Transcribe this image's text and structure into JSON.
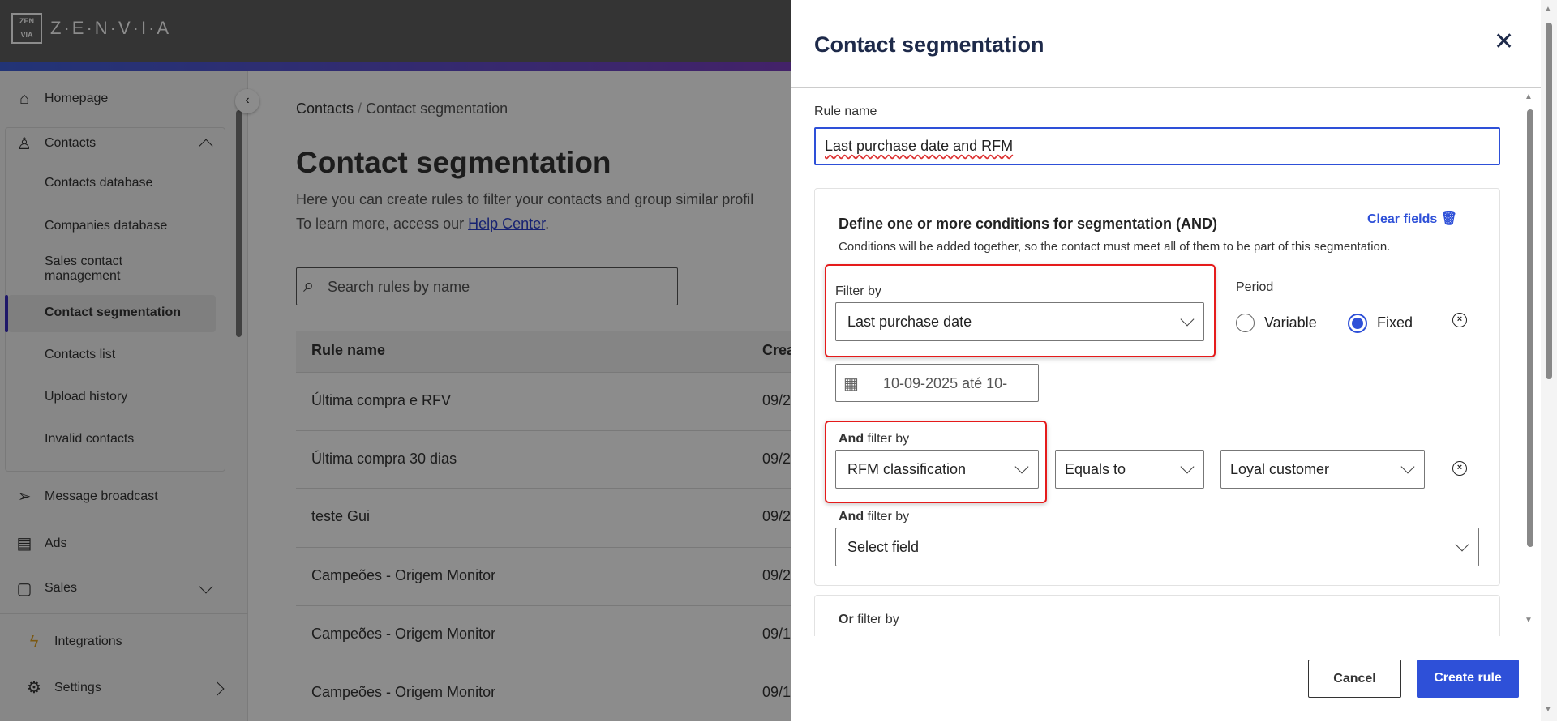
{
  "brand": {
    "logo_text": "ZEN VIA",
    "name": "Z·E·N·V·I·A"
  },
  "sidebar": {
    "items": [
      {
        "label": "Homepage",
        "icon": "home-icon"
      },
      {
        "label": "Contacts",
        "icon": "user-icon",
        "expanded": true,
        "children": [
          "Contacts database",
          "Companies database",
          "Sales contact management",
          "Contact segmentation",
          "Contacts list",
          "Upload history",
          "Invalid contacts"
        ],
        "active_child": "Contact segmentation"
      },
      {
        "label": "Message broadcast",
        "icon": "send-icon"
      },
      {
        "label": "Ads",
        "icon": "document-icon"
      },
      {
        "label": "Sales",
        "icon": "chat-icon"
      },
      {
        "label": "Integrations",
        "icon": "lightning-icon"
      },
      {
        "label": "Settings",
        "icon": "gear-icon"
      }
    ]
  },
  "main": {
    "breadcrumb": [
      "Contacts",
      "Contact segmentation"
    ],
    "title": "Contact segmentation",
    "description": "Here you can create rules to filter your contacts and group similar profil",
    "help_prefix": "To learn more, access our ",
    "help_link": "Help Center",
    "help_suffix": ".",
    "search_placeholder": "Search rules by name",
    "table": {
      "columns": [
        "Rule name",
        "Crea"
      ],
      "rows": [
        [
          "Última compra e RFV",
          "09/2"
        ],
        [
          "Última compra 30 dias",
          "09/2"
        ],
        [
          "teste Gui",
          "09/2"
        ],
        [
          "Campeões - Origem Monitor",
          "09/2"
        ],
        [
          "Campeões - Origem Monitor",
          "09/1"
        ],
        [
          "Campeões - Origem Monitor",
          "09/1"
        ]
      ]
    }
  },
  "panel": {
    "title": "Contact segmentation",
    "rule_name_label": "Rule name",
    "rule_name_value": "Last purchase date and RFM",
    "conditions_title": "Define one or more conditions for segmentation (AND)",
    "clear_fields": "Clear fields",
    "conditions_desc": "Conditions will be added together, so the contact must meet all of them to be part of this segmentation.",
    "filter_by_label": "Filter by",
    "filter_by_value": "Last purchase date",
    "period_label": "Period",
    "period_options": [
      "Variable",
      "Fixed"
    ],
    "period_selected": "Fixed",
    "date_value": "10-09-2025 até 10-",
    "and_bold": "And",
    "filter_by_suffix": " filter by",
    "rfm_value": "RFM classification",
    "operator_value": "Equals to",
    "class_value": "Loyal customer",
    "select_field_placeholder": "Select field",
    "or_bold": "Or",
    "cancel": "Cancel",
    "create": "Create rule"
  },
  "colors": {
    "accent": "#2e50d8",
    "highlight": "#e51b1b"
  }
}
